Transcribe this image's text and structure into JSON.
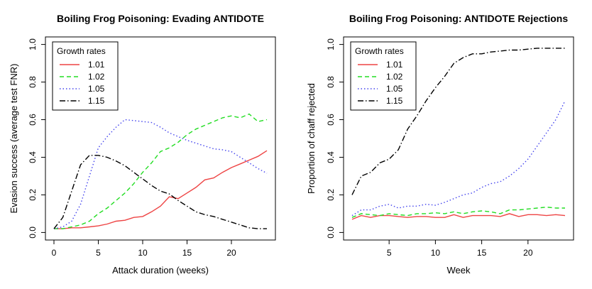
{
  "chart_data": [
    {
      "type": "line",
      "title": "Boiling Frog Poisoning: Evading ANTIDOTE",
      "xlabel": "Attack duration (weeks)",
      "ylabel": "Evasion success (average test FNR)",
      "xlim": [
        0,
        24
      ],
      "ylim": [
        0,
        1
      ],
      "xticks": [
        0,
        5,
        10,
        15,
        20
      ],
      "yticks": [
        0.0,
        0.2,
        0.4,
        0.6,
        0.8,
        1.0
      ],
      "xtick_labels": [
        "0",
        "5",
        "10",
        "15",
        "20"
      ],
      "ytick_labels": [
        "0.0",
        "0.2",
        "0.4",
        "0.6",
        "0.8",
        "1.0"
      ],
      "grid": false,
      "legend": {
        "title": "Growth rates",
        "position": "top-left"
      },
      "x": [
        0,
        1,
        2,
        3,
        4,
        5,
        6,
        7,
        8,
        9,
        10,
        11,
        12,
        13,
        14,
        15,
        16,
        17,
        18,
        19,
        20,
        21,
        22,
        23,
        24
      ],
      "series": [
        {
          "name": "1.01",
          "color": "#ee4444",
          "dash": "solid",
          "values": [
            0.02,
            0.02,
            0.025,
            0.025,
            0.03,
            0.035,
            0.045,
            0.06,
            0.065,
            0.08,
            0.085,
            0.11,
            0.14,
            0.19,
            0.18,
            0.21,
            0.24,
            0.28,
            0.29,
            0.32,
            0.345,
            0.365,
            0.385,
            0.405,
            0.435
          ]
        },
        {
          "name": "1.02",
          "color": "#22dd22",
          "dash": "dashed",
          "values": [
            0.02,
            0.02,
            0.03,
            0.04,
            0.06,
            0.1,
            0.13,
            0.17,
            0.21,
            0.26,
            0.32,
            0.37,
            0.43,
            0.45,
            0.48,
            0.52,
            0.55,
            0.57,
            0.59,
            0.61,
            0.62,
            0.61,
            0.63,
            0.59,
            0.6
          ]
        },
        {
          "name": "1.05",
          "color": "#4444ee",
          "dash": "dotted",
          "values": [
            0.02,
            0.03,
            0.06,
            0.15,
            0.3,
            0.45,
            0.51,
            0.56,
            0.6,
            0.595,
            0.59,
            0.585,
            0.56,
            0.53,
            0.51,
            0.49,
            0.475,
            0.46,
            0.445,
            0.44,
            0.43,
            0.4,
            0.37,
            0.34,
            0.315
          ]
        },
        {
          "name": "1.15",
          "color": "#000000",
          "dash": "dashdot",
          "values": [
            0.02,
            0.08,
            0.22,
            0.36,
            0.41,
            0.41,
            0.4,
            0.38,
            0.355,
            0.32,
            0.285,
            0.25,
            0.22,
            0.205,
            0.17,
            0.14,
            0.11,
            0.095,
            0.085,
            0.07,
            0.055,
            0.04,
            0.025,
            0.02,
            0.02
          ]
        }
      ]
    },
    {
      "type": "line",
      "title": "Boiling Frog Poisoning: ANTIDOTE Rejections",
      "xlabel": "Week",
      "ylabel": "Proportion of chaff rejected",
      "xlim": [
        1,
        24
      ],
      "ylim": [
        0,
        1
      ],
      "xticks": [
        5,
        10,
        15,
        20
      ],
      "yticks": [
        0.0,
        0.2,
        0.4,
        0.6,
        0.8,
        1.0
      ],
      "xtick_labels": [
        "5",
        "10",
        "15",
        "20"
      ],
      "ytick_labels": [
        "0.0",
        "0.2",
        "0.4",
        "0.6",
        "0.8",
        "1.0"
      ],
      "grid": false,
      "legend": {
        "title": "Growth rates",
        "position": "top-left"
      },
      "x": [
        1,
        2,
        3,
        4,
        5,
        6,
        7,
        8,
        9,
        10,
        11,
        12,
        13,
        14,
        15,
        16,
        17,
        18,
        19,
        20,
        21,
        22,
        23,
        24
      ],
      "series": [
        {
          "name": "1.01",
          "color": "#ee4444",
          "dash": "solid",
          "values": [
            0.07,
            0.09,
            0.08,
            0.09,
            0.09,
            0.085,
            0.08,
            0.085,
            0.085,
            0.08,
            0.08,
            0.095,
            0.08,
            0.09,
            0.09,
            0.09,
            0.085,
            0.1,
            0.085,
            0.095,
            0.095,
            0.09,
            0.095,
            0.09
          ]
        },
        {
          "name": "1.02",
          "color": "#22dd22",
          "dash": "dashed",
          "values": [
            0.08,
            0.1,
            0.095,
            0.09,
            0.1,
            0.095,
            0.09,
            0.1,
            0.1,
            0.105,
            0.1,
            0.11,
            0.1,
            0.11,
            0.115,
            0.11,
            0.1,
            0.12,
            0.12,
            0.125,
            0.13,
            0.135,
            0.13,
            0.13
          ]
        },
        {
          "name": "1.05",
          "color": "#4444ee",
          "dash": "dotted",
          "values": [
            0.09,
            0.12,
            0.12,
            0.14,
            0.15,
            0.13,
            0.14,
            0.14,
            0.15,
            0.145,
            0.16,
            0.18,
            0.2,
            0.21,
            0.24,
            0.26,
            0.27,
            0.3,
            0.34,
            0.39,
            0.46,
            0.53,
            0.6,
            0.7
          ]
        },
        {
          "name": "1.15",
          "color": "#000000",
          "dash": "dashdot",
          "values": [
            0.2,
            0.3,
            0.32,
            0.37,
            0.39,
            0.44,
            0.55,
            0.62,
            0.7,
            0.77,
            0.83,
            0.9,
            0.93,
            0.95,
            0.95,
            0.96,
            0.965,
            0.97,
            0.97,
            0.975,
            0.98,
            0.98,
            0.98,
            0.98
          ]
        }
      ]
    }
  ]
}
